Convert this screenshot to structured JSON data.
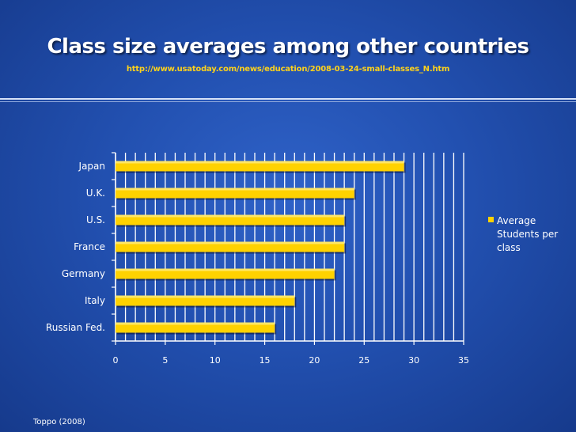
{
  "slide": {
    "title": "Class size averages among other countries",
    "source_url": "http://www.usatoday.com/news/education/2008-03-24-small-classes_N.htm",
    "footer": "Toppo (2008)"
  },
  "colors": {
    "background": "#2250b0",
    "bar": "#ffd200",
    "gridline": "#ffffff",
    "subtitle": "#ffd21a"
  },
  "chart_data": {
    "type": "bar",
    "orientation": "horizontal",
    "categories": [
      "Japan",
      "U.K.",
      "U.S.",
      "France",
      "Germany",
      "Italy",
      "Russian Fed."
    ],
    "series": [
      {
        "name": "Average Students per class",
        "values": [
          29,
          24,
          23,
          23,
          22,
          18,
          16
        ]
      }
    ],
    "xlim": [
      0,
      35
    ],
    "x_ticks": [
      0,
      5,
      10,
      15,
      20,
      25,
      30,
      35
    ],
    "grid": true,
    "legend": {
      "position": "right",
      "lines": [
        "Average",
        "Students per",
        "class"
      ]
    },
    "xlabel": "",
    "ylabel": ""
  }
}
